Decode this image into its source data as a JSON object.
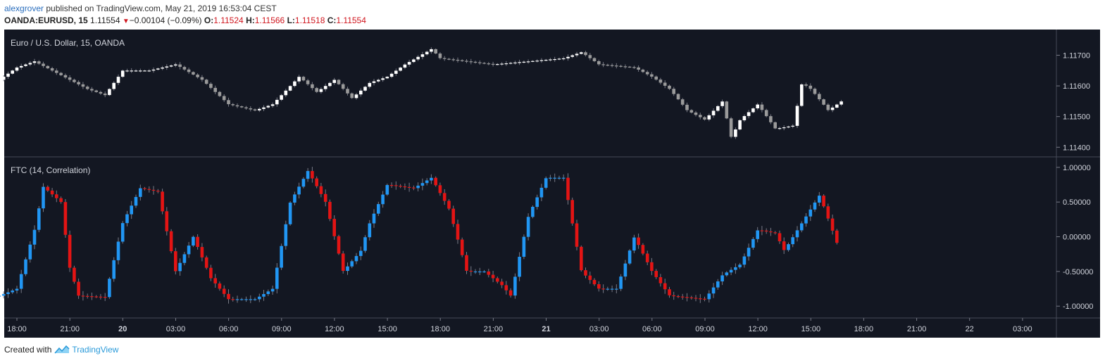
{
  "header": {
    "author": "alexgrover",
    "published_text": " published on TradingView.com, May 21, 2019 16:53:04 CEST",
    "symbol": "OANDA:EURUSD, 15",
    "last": "1.11554",
    "change": "−0.00104 (−0.09%)",
    "o_label": "O:",
    "o": "1.11524",
    "h_label": "H:",
    "h": "1.11566",
    "l_label": "L:",
    "l": "1.11518",
    "c_label": "C:",
    "c": "1.11554"
  },
  "footer": {
    "created_with": "Created with",
    "brand": "TradingView"
  },
  "colors": {
    "background": "#131722",
    "candle_up": "#ffffff",
    "candle_down": "#9a9a9a",
    "ftc_up": "#2196f3",
    "ftc_down": "#e31414",
    "wick": "#787b86"
  },
  "chart_data": [
    {
      "type": "candlestick",
      "title": "Euro / U.S. Dollar, 15, OANDA",
      "ylim": [
        1.1138,
        1.1177
      ],
      "y_ticks": [
        "1.11700",
        "1.11600",
        "1.11500",
        "1.11400"
      ],
      "y_tick_values": [
        1.117,
        1.116,
        1.115,
        1.114
      ],
      "close_path": [
        [
          "2019-05-19 17:00",
          1.1162
        ],
        [
          "2019-05-19 18:00",
          1.1166
        ],
        [
          "2019-05-19 19:00",
          1.1168
        ],
        [
          "2019-05-19 21:00",
          1.1162
        ],
        [
          "2019-05-19 22:00",
          1.1159
        ],
        [
          "2019-05-19 23:00",
          1.1157
        ],
        [
          "2019-05-20 00:00",
          1.1165
        ],
        [
          "2019-05-20 01:30",
          1.1165
        ],
        [
          "2019-05-20 03:00",
          1.1167
        ],
        [
          "2019-05-20 04:30",
          1.1162
        ],
        [
          "2019-05-20 06:00",
          1.1154
        ],
        [
          "2019-05-20 07:30",
          1.1152
        ],
        [
          "2019-05-20 08:30",
          1.1154
        ],
        [
          "2019-05-20 10:00",
          1.1163
        ],
        [
          "2019-05-20 11:00",
          1.1158
        ],
        [
          "2019-05-20 12:00",
          1.1162
        ],
        [
          "2019-05-20 13:00",
          1.1156
        ],
        [
          "2019-05-20 14:00",
          1.1161
        ],
        [
          "2019-05-20 15:00",
          1.1163
        ],
        [
          "2019-05-20 16:00",
          1.1167
        ],
        [
          "2019-05-20 17:30",
          1.1172
        ],
        [
          "2019-05-20 18:00",
          1.1169
        ],
        [
          "2019-05-20 19:30",
          1.1168
        ],
        [
          "2019-05-20 21:00",
          1.1167
        ],
        [
          "2019-05-20 23:00",
          1.1168
        ],
        [
          "2019-05-21 01:00",
          1.1169
        ],
        [
          "2019-05-21 02:00",
          1.1171
        ],
        [
          "2019-05-21 03:00",
          1.1167
        ],
        [
          "2019-05-21 05:00",
          1.1166
        ],
        [
          "2019-05-21 06:00",
          1.1163
        ],
        [
          "2019-05-21 07:00",
          1.1159
        ],
        [
          "2019-05-21 08:00",
          1.1152
        ],
        [
          "2019-05-21 09:00",
          1.1149
        ],
        [
          "2019-05-21 10:00",
          1.1155
        ],
        [
          "2019-05-21 10:30",
          1.1143
        ],
        [
          "2019-05-21 11:00",
          1.1149
        ],
        [
          "2019-05-21 12:00",
          1.1154
        ],
        [
          "2019-05-21 13:00",
          1.1146
        ],
        [
          "2019-05-21 14:00",
          1.1147
        ],
        [
          "2019-05-21 14:30",
          1.1161
        ],
        [
          "2019-05-21 15:00",
          1.1159
        ],
        [
          "2019-05-21 16:00",
          1.1152
        ],
        [
          "2019-05-21 16:45",
          1.1155
        ]
      ]
    },
    {
      "type": "candlestick",
      "title": "FTC (14, Correlation)",
      "ylim": [
        -1.15,
        1.1
      ],
      "y_ticks": [
        "1.00000",
        "0.50000",
        "0.00000",
        "-0.50000",
        "-1.00000"
      ],
      "y_tick_values": [
        1.0,
        0.5,
        0.0,
        -0.5,
        -1.0
      ],
      "close_path": [
        [
          "2019-05-19 17:00",
          -0.85
        ],
        [
          "2019-05-19 18:00",
          -0.75
        ],
        [
          "2019-05-19 19:00",
          0.1
        ],
        [
          "2019-05-19 19:30",
          0.72
        ],
        [
          "2019-05-19 20:30",
          0.5
        ],
        [
          "2019-05-19 21:00",
          -0.45
        ],
        [
          "2019-05-19 21:30",
          -0.85
        ],
        [
          "2019-05-19 23:00",
          -0.87
        ],
        [
          "2019-05-20 00:00",
          0.2
        ],
        [
          "2019-05-20 01:00",
          0.7
        ],
        [
          "2019-05-20 02:00",
          0.65
        ],
        [
          "2019-05-20 03:00",
          -0.5
        ],
        [
          "2019-05-20 04:00",
          0.0
        ],
        [
          "2019-05-20 05:00",
          -0.6
        ],
        [
          "2019-05-20 06:00",
          -0.9
        ],
        [
          "2019-05-20 07:30",
          -0.9
        ],
        [
          "2019-05-20 08:30",
          -0.75
        ],
        [
          "2019-05-20 09:30",
          0.5
        ],
        [
          "2019-05-20 10:30",
          0.95
        ],
        [
          "2019-05-20 11:30",
          0.5
        ],
        [
          "2019-05-20 12:30",
          -0.5
        ],
        [
          "2019-05-20 13:30",
          -0.2
        ],
        [
          "2019-05-20 14:00",
          0.2
        ],
        [
          "2019-05-20 15:00",
          0.75
        ],
        [
          "2019-05-20 16:30",
          0.7
        ],
        [
          "2019-05-20 17:30",
          0.85
        ],
        [
          "2019-05-20 18:30",
          0.4
        ],
        [
          "2019-05-20 19:30",
          -0.5
        ],
        [
          "2019-05-20 20:30",
          -0.5
        ],
        [
          "2019-05-20 21:30",
          -0.7
        ],
        [
          "2019-05-20 22:00",
          -0.85
        ],
        [
          "2019-05-20 23:00",
          0.3
        ],
        [
          "2019-05-21 00:00",
          0.85
        ],
        [
          "2019-05-21 01:00",
          0.85
        ],
        [
          "2019-05-21 02:00",
          -0.5
        ],
        [
          "2019-05-21 03:00",
          -0.75
        ],
        [
          "2019-05-21 04:00",
          -0.75
        ],
        [
          "2019-05-21 05:00",
          0.0
        ],
        [
          "2019-05-21 06:00",
          -0.5
        ],
        [
          "2019-05-21 07:00",
          -0.85
        ],
        [
          "2019-05-21 09:00",
          -0.9
        ],
        [
          "2019-05-21 10:00",
          -0.55
        ],
        [
          "2019-05-21 11:00",
          -0.4
        ],
        [
          "2019-05-21 12:00",
          0.1
        ],
        [
          "2019-05-21 13:00",
          0.05
        ],
        [
          "2019-05-21 13:30",
          -0.2
        ],
        [
          "2019-05-21 14:30",
          0.2
        ],
        [
          "2019-05-21 15:30",
          0.6
        ],
        [
          "2019-05-21 16:30",
          -0.1
        ]
      ]
    }
  ],
  "x_axis": {
    "ticks": [
      "18:00",
      "21:00",
      "20",
      "03:00",
      "06:00",
      "09:00",
      "12:00",
      "15:00",
      "18:00",
      "21:00",
      "21",
      "03:00",
      "06:00",
      "09:00",
      "12:00",
      "15:00",
      "18:00",
      "21:00",
      "22",
      "03:00"
    ],
    "bold": [
      false,
      false,
      true,
      false,
      false,
      false,
      false,
      false,
      false,
      false,
      true,
      false,
      false,
      false,
      false,
      false,
      false,
      false,
      false,
      false
    ]
  }
}
